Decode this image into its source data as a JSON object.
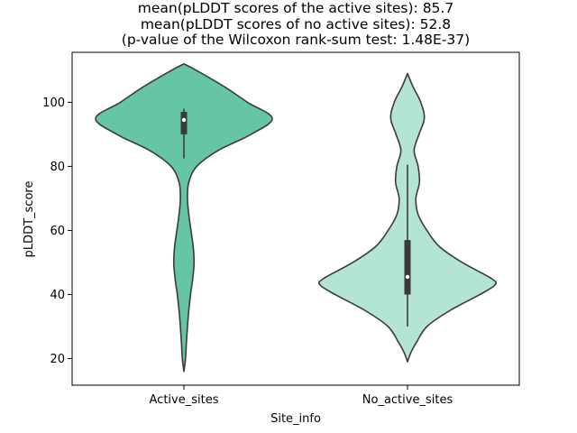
{
  "chart_data": {
    "type": "violin",
    "title_lines": [
      "mean(pLDDT scores of the active sites): 85.7",
      "mean(pLDDT scores of no active sites): 52.8",
      "(p-value of the Wilcoxon rank-sum test: 1.48E-37)"
    ],
    "xlabel": "Site_info",
    "ylabel": "pLDDT_score",
    "categories": [
      "Active_sites",
      "No_active_sites"
    ],
    "ylim": [
      11.7,
      115.6
    ],
    "yticks": [
      20,
      40,
      60,
      80,
      100
    ],
    "grid": false,
    "legend": "none",
    "colors": {
      "Active_sites": "#66c5a7",
      "No_active_sites": "#b3e4d4",
      "outline": "#3a3a3a",
      "box": "#3a3a3a",
      "median": "#ffffff"
    },
    "violins": [
      {
        "category": "Active_sites",
        "range": [
          16,
          112
        ],
        "profile": [
          [
            16,
            0.0
          ],
          [
            20,
            0.018
          ],
          [
            25,
            0.028
          ],
          [
            30,
            0.04
          ],
          [
            35,
            0.055
          ],
          [
            40,
            0.075
          ],
          [
            45,
            0.1
          ],
          [
            50,
            0.115
          ],
          [
            55,
            0.105
          ],
          [
            60,
            0.08
          ],
          [
            65,
            0.055
          ],
          [
            70,
            0.04
          ],
          [
            75,
            0.055
          ],
          [
            80,
            0.145
          ],
          [
            85,
            0.39
          ],
          [
            90,
            0.76
          ],
          [
            95,
            1.0
          ],
          [
            100,
            0.72
          ],
          [
            105,
            0.45
          ],
          [
            110,
            0.14
          ],
          [
            112,
            0.0
          ]
        ],
        "box": {
          "q1": 90,
          "q3": 97,
          "median": 94.5,
          "whisker_low": 82.5,
          "whisker_high": 98
        }
      },
      {
        "category": "No_active_sites",
        "range": [
          19,
          109
        ],
        "profile": [
          [
            19,
            0.0
          ],
          [
            22,
            0.04
          ],
          [
            25,
            0.1
          ],
          [
            30,
            0.22
          ],
          [
            35,
            0.48
          ],
          [
            40,
            0.82
          ],
          [
            43,
            0.99
          ],
          [
            45,
            0.95
          ],
          [
            50,
            0.62
          ],
          [
            55,
            0.36
          ],
          [
            60,
            0.22
          ],
          [
            65,
            0.12
          ],
          [
            70,
            0.095
          ],
          [
            75,
            0.135
          ],
          [
            80,
            0.12
          ],
          [
            85,
            0.075
          ],
          [
            90,
            0.13
          ],
          [
            95,
            0.19
          ],
          [
            100,
            0.15
          ],
          [
            105,
            0.06
          ],
          [
            109,
            0.0
          ]
        ],
        "box": {
          "q1": 40,
          "q3": 57,
          "median": 45.5,
          "whisker_low": 30,
          "whisker_high": 80.5
        }
      }
    ]
  }
}
